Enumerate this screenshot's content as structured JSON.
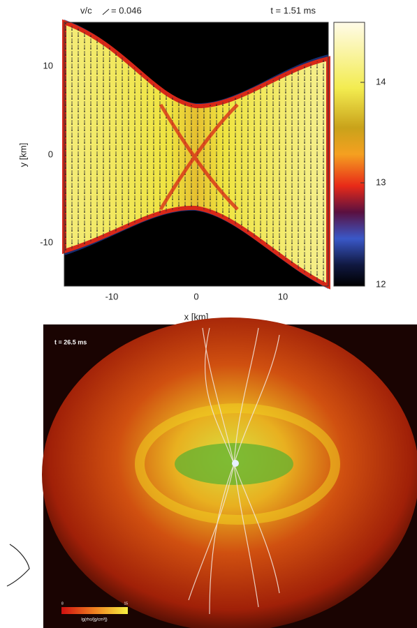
{
  "top_panel": {
    "velocity_label": "v/c",
    "velocity_scale": "= 0.046",
    "time": "t = 1.51 ms",
    "y_axis": {
      "label": "y [km]",
      "ticks": [
        "10",
        "0",
        "-10"
      ]
    },
    "x_axis": {
      "label": "x [km]",
      "ticks": [
        "-10",
        "0",
        "10"
      ]
    },
    "colorbar_ticks": [
      "14",
      "13",
      "12"
    ]
  },
  "bottom_panel": {
    "time": "t = 26.5 ms",
    "colorbar_min": "8",
    "colorbar_max": "15",
    "colorbar_label": "lg(rho/[g/cm³])"
  }
}
